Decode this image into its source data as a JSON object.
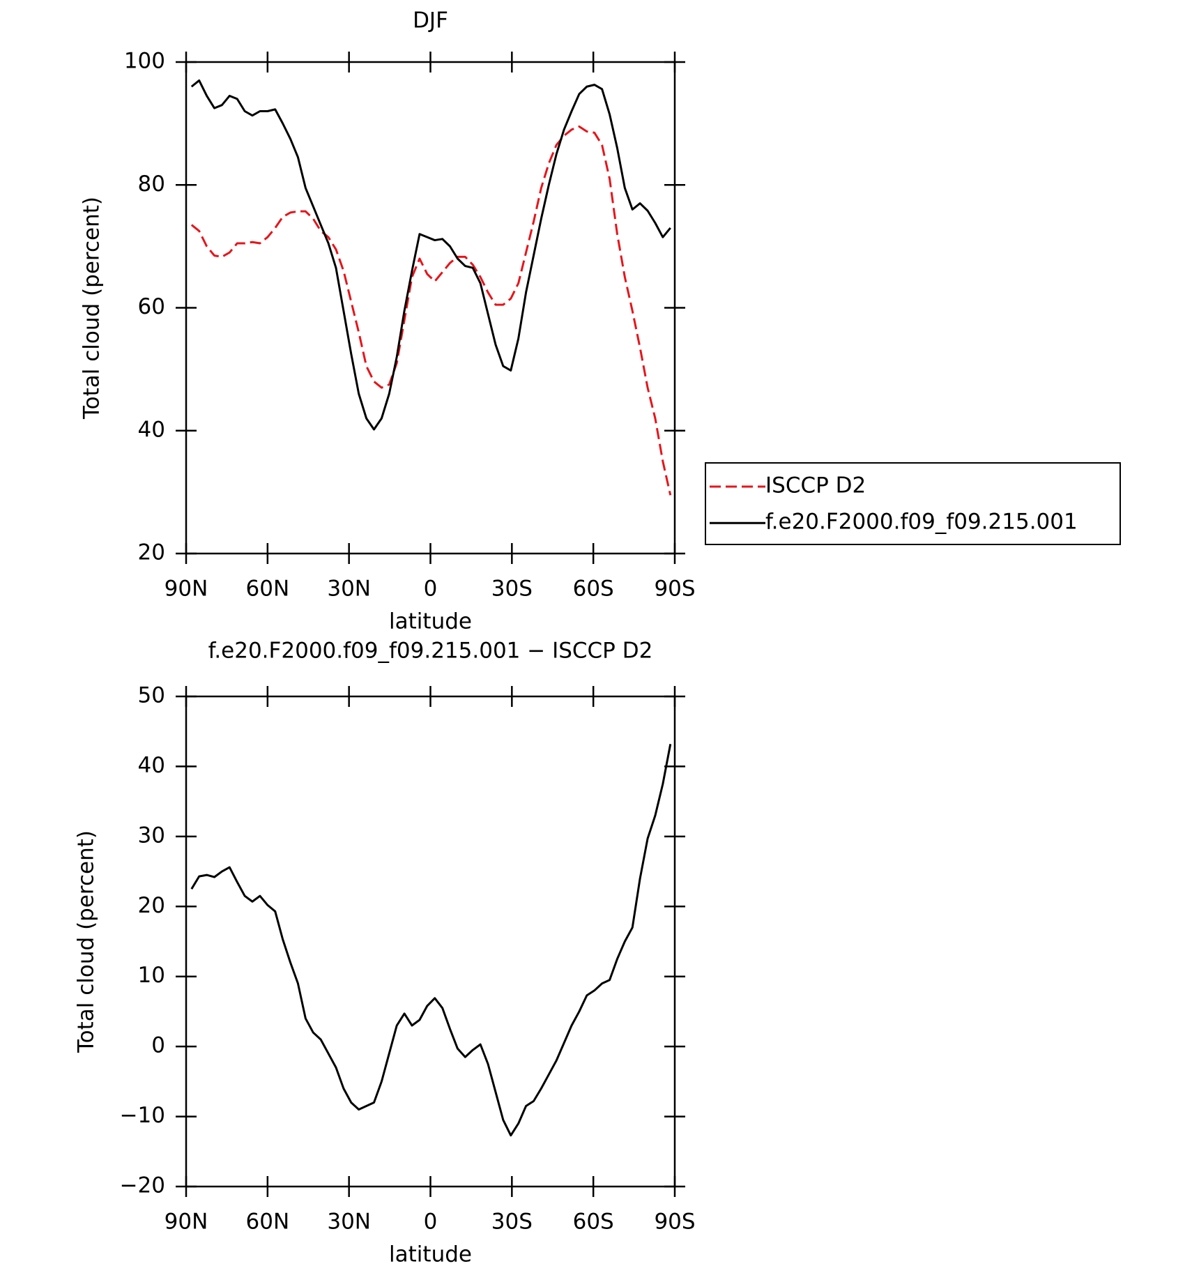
{
  "chart_data": [
    {
      "type": "line",
      "title": "DJF",
      "xlabel": "latitude",
      "ylabel": "Total cloud (percent)",
      "x": [
        88,
        85.2,
        82.4,
        79.6,
        76.8,
        74,
        71.2,
        68.4,
        65.6,
        62.8,
        60,
        57.2,
        54.4,
        51.6,
        48.8,
        46,
        43.2,
        40.4,
        37.6,
        34.8,
        32,
        29.2,
        26.4,
        23.6,
        20.8,
        18,
        15.2,
        12.4,
        9.6,
        6.8,
        4,
        1.2,
        -1.6,
        -4.4,
        -7.2,
        -10,
        -12.8,
        -15.6,
        -18.4,
        -21.2,
        -24,
        -26.8,
        -29.6,
        -32.4,
        -35.2,
        -38,
        -40.8,
        -43.6,
        -46.4,
        -49.2,
        -52,
        -54.8,
        -57.6,
        -60.4,
        -63.2,
        -66,
        -68.8,
        -71.6,
        -74.4,
        -77.2,
        -80,
        -82.8,
        -85.6,
        -88.4
      ],
      "series": [
        {
          "name": "ISCCP D2",
          "color": "#e8141a",
          "style": "dashed",
          "values": [
            73.5,
            72.5,
            70,
            68.5,
            68.3,
            69,
            70.5,
            70.5,
            70.7,
            70.5,
            71.5,
            73,
            74.8,
            75.5,
            75.7,
            75.7,
            74.5,
            72.5,
            71.5,
            69.5,
            66,
            61,
            56,
            50.5,
            48,
            47,
            47.5,
            51,
            58,
            65,
            68,
            65.5,
            64.3,
            65.8,
            67.3,
            68.3,
            68.3,
            67,
            65,
            62.5,
            60.5,
            60.5,
            61.5,
            64,
            69,
            74,
            79.5,
            83.5,
            86.5,
            88,
            89,
            89.5,
            88.7,
            88.5,
            86.5,
            81,
            72,
            65,
            59.5,
            53.5,
            47,
            42,
            35,
            29.5
          ]
        },
        {
          "name": "f.e20.F2000.f09_f09.215.001",
          "color": "#000000",
          "style": "solid",
          "values": [
            96,
            97,
            94.5,
            92.5,
            93,
            94.5,
            94,
            92,
            91.3,
            92,
            92,
            92.3,
            90,
            87.5,
            84.5,
            79.5,
            76.5,
            73.5,
            70.5,
            66.5,
            59.5,
            52.5,
            46,
            42,
            40.2,
            42,
            46,
            52,
            59.5,
            66,
            72,
            71.5,
            71,
            71.2,
            70,
            68,
            66.8,
            66.5,
            64,
            59,
            54,
            50.5,
            49.8,
            55,
            62.5,
            68.5,
            74.5,
            80,
            85,
            89,
            92,
            94.8,
            96,
            96.3,
            95.6,
            91.5,
            86,
            79.5,
            76,
            77,
            75.8,
            73.8,
            71.5,
            73
          ]
        }
      ],
      "xlim": [
        90,
        -90
      ],
      "xticks": [
        {
          "value": 90,
          "label": "90N"
        },
        {
          "value": 60,
          "label": "60N"
        },
        {
          "value": 30,
          "label": "30N"
        },
        0,
        {
          "value": -30,
          "label": "30S"
        },
        {
          "value": -60,
          "label": "60S"
        },
        {
          "value": -90,
          "label": "90S"
        }
      ],
      "ylim": [
        20,
        100
      ],
      "yticks": [
        20,
        40,
        60,
        80,
        100
      ],
      "legend": "outside-right"
    },
    {
      "type": "line",
      "title": "f.e20.F2000.f09_f09.215.001 − ISCCP D2",
      "xlabel": "latitude",
      "ylabel": "Total cloud (percent)",
      "x": [
        88,
        85.2,
        82.4,
        79.6,
        76.8,
        74,
        71.2,
        68.4,
        65.6,
        62.8,
        60,
        57.2,
        54.4,
        51.6,
        48.8,
        46,
        43.2,
        40.4,
        37.6,
        34.8,
        32,
        29.2,
        26.4,
        23.6,
        20.8,
        18,
        15.2,
        12.4,
        9.6,
        6.8,
        4,
        1.2,
        -1.6,
        -4.4,
        -7.2,
        -10,
        -12.8,
        -15.6,
        -18.4,
        -21.2,
        -24,
        -26.8,
        -29.6,
        -32.4,
        -35.2,
        -38,
        -40.8,
        -43.6,
        -46.4,
        -49.2,
        -52,
        -54.8,
        -57.6,
        -60.4,
        -63.2,
        -66,
        -68.8,
        -71.6,
        -74.4,
        -77.2,
        -80,
        -82.8,
        -85.6,
        -88.4
      ],
      "series": [
        {
          "color": "#000000",
          "style": "solid",
          "values": [
            22.5,
            24.3,
            24.5,
            24.2,
            25,
            25.6,
            23.5,
            21.5,
            20.7,
            21.5,
            20.2,
            19.3,
            15.3,
            12,
            9,
            4,
            2,
            1,
            -1,
            -3,
            -6,
            -8,
            -9,
            -8.5,
            -8,
            -5,
            -1,
            3,
            4.7,
            3,
            3.8,
            5.8,
            6.9,
            5.5,
            2.5,
            -0.3,
            -1.5,
            -0.5,
            0.3,
            -2.5,
            -6.5,
            -10.5,
            -12.7,
            -11,
            -8.5,
            -7.8,
            -6,
            -4,
            -2,
            0.5,
            3,
            5,
            7.3,
            8,
            9,
            9.5,
            12.5,
            15,
            17,
            24,
            29.7,
            33,
            37.5,
            43.2
          ]
        }
      ],
      "xlim": [
        90,
        -90
      ],
      "xticks": [
        {
          "value": 90,
          "label": "90N"
        },
        {
          "value": 60,
          "label": "60N"
        },
        {
          "value": 30,
          "label": "30N"
        },
        0,
        {
          "value": -30,
          "label": "30S"
        },
        {
          "value": -60,
          "label": "60S"
        },
        {
          "value": -90,
          "label": "90S"
        }
      ],
      "ylim": [
        -20,
        50
      ],
      "yticks": [
        {
          "value": -20,
          "label": "−20"
        },
        {
          "value": -10,
          "label": "−10"
        },
        0,
        10,
        20,
        30,
        40,
        50
      ]
    }
  ]
}
